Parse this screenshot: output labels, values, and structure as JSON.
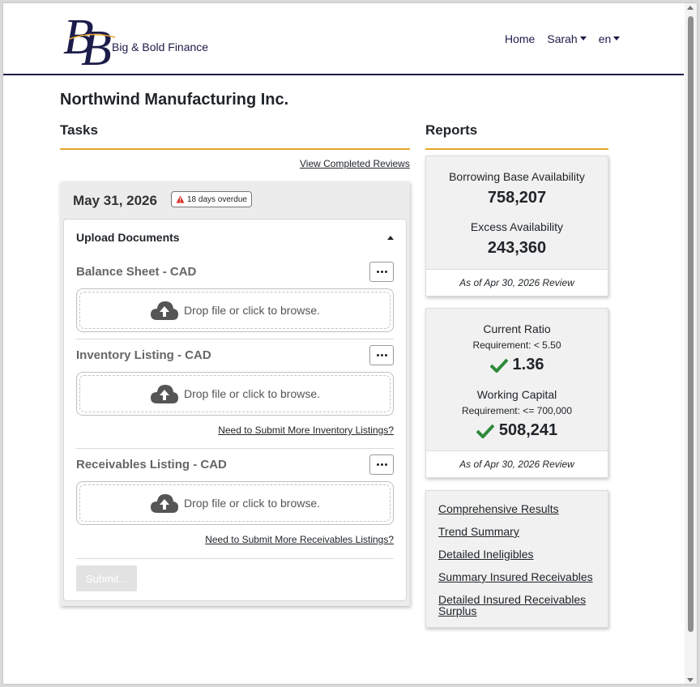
{
  "brand": {
    "logo_text": "BB",
    "name": "Big & Bold Finance"
  },
  "nav": {
    "home": "Home",
    "user": "Sarah",
    "lang": "en"
  },
  "company": "Northwind Manufacturing Inc.",
  "tasks": {
    "title": "Tasks",
    "view_completed": "View Completed Reviews",
    "date": "May 31, 2026",
    "overdue": "18 days overdue",
    "upload_header": "Upload Documents",
    "documents": [
      {
        "title": "Balance Sheet - CAD",
        "drop_text": "Drop file or click to browse."
      },
      {
        "title": "Inventory Listing - CAD",
        "drop_text": "Drop file or click to browse.",
        "more_link": "Need to Submit More Inventory Listings?"
      },
      {
        "title": "Receivables Listing - CAD",
        "drop_text": "Drop file or click to browse.",
        "more_link": "Need to Submit More Receivables Listings?"
      }
    ],
    "submit": "Submit..."
  },
  "reports": {
    "title": "Reports",
    "availability": {
      "bba_label": "Borrowing Base Availability",
      "bba_value": "758,207",
      "excess_label": "Excess Availability",
      "excess_value": "243,360",
      "footer": "As of Apr 30, 2026 Review"
    },
    "covenants": {
      "cr_label": "Current Ratio",
      "cr_req": "Requirement: < 5.50",
      "cr_value": "1.36",
      "wc_label": "Working Capital",
      "wc_req": "Requirement: <= 700,000",
      "wc_value": "508,241",
      "footer": "As of Apr 30, 2026 Review"
    },
    "links": [
      "Comprehensive Results",
      "Trend Summary",
      "Detailed Ineligibles",
      "Summary Insured Receivables",
      "Detailed Insured Receivables Surplus"
    ]
  },
  "colors": {
    "brand_navy": "#1c1c4a",
    "gold_accent": "#e8a728",
    "check_green": "#2e8b3a",
    "warning_red": "#d9342b"
  }
}
